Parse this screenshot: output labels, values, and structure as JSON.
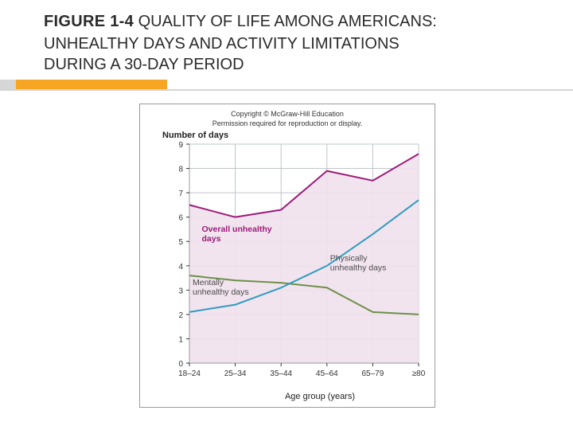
{
  "title": {
    "figure_label": "FIGURE 1-4",
    "line1_rest": " QUALITY OF LIFE AMONG AMERICANS:",
    "line2": "UNHEALTHY DAYS AND ACTIVITY LIMITATIONS",
    "line3": "DURING A 30-DAY PERIOD"
  },
  "copyright": {
    "line1": "Copyright © McGraw-Hill Education",
    "line2": "Permission required for reproduction or display."
  },
  "chart": {
    "type": "line",
    "y_axis": {
      "label": "Number of days",
      "min": 0,
      "max": 9,
      "ticks": [
        0,
        1,
        2,
        3,
        4,
        5,
        6,
        7,
        8,
        9
      ],
      "label_fontsize": 11
    },
    "x_axis": {
      "label": "Age group (years)",
      "categories": [
        "18–24",
        "25–34",
        "35–44",
        "45–64",
        "65–79",
        "≥80"
      ],
      "label_fontsize": 11
    },
    "grid_color": "#bfc4c9",
    "background_color": "#ffffff",
    "plot_border_color": "#9a9a9a",
    "line_width": 2,
    "series": {
      "overall": {
        "label": "Overall unhealthy days",
        "color": "#9c1b7a",
        "fill": "#f0e1ec",
        "values": [
          6.5,
          6.0,
          6.3,
          7.9,
          7.5,
          8.6
        ]
      },
      "physical": {
        "label": "Physically unhealthy days",
        "color": "#2f9bbf",
        "fill": null,
        "values": [
          2.1,
          2.4,
          3.1,
          4.0,
          5.3,
          6.7
        ]
      },
      "mental": {
        "label": "Mentally unhealthy days",
        "color": "#6f8f4a",
        "fill": null,
        "values": [
          3.6,
          3.4,
          3.3,
          3.1,
          2.1,
          2.0
        ]
      }
    },
    "inline_labels": {
      "overall": {
        "text": "Overall unhealthy\ndays",
        "color": "#9c1b7a",
        "x_cat_index": 0.2,
        "y_val": 5.4
      },
      "mental": {
        "text": "Mentally\nunhealthy days",
        "color": "#4a4a4a",
        "x_cat_index": 0.0,
        "y_val": 3.2
      },
      "physical": {
        "text": "Physically\nunhealthy days",
        "color": "#4a4a4a",
        "x_cat_index": 3.0,
        "y_val": 4.2
      }
    },
    "tick_fontsize": 10
  }
}
